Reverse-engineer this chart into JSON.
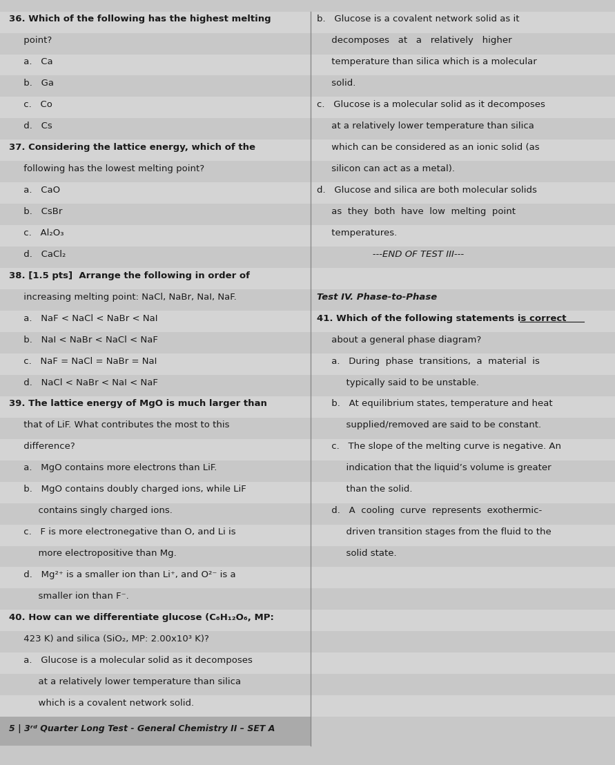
{
  "bg_color": "#c8c8c8",
  "row_color_a": "#c8c8c8",
  "row_color_b": "#d4d4d4",
  "text_color": "#1a1a1a",
  "divider_color": "#888888",
  "font_size": 9.5,
  "page_width": 8.91,
  "page_height": 11.08,
  "rows": [
    {
      "left": "36. Which of the following has the highest melting",
      "right": "b.   Glucose is a covalent network solid as it",
      "left_bold": true,
      "right_bold": false
    },
    {
      "left": "     point?",
      "right": "     decomposes   at   a   relatively   higher",
      "left_bold": false,
      "right_bold": false
    },
    {
      "left": "     a.   Ca",
      "right": "     temperature than silica which is a molecular",
      "left_bold": false,
      "right_bold": false
    },
    {
      "left": "     b.   Ga",
      "right": "     solid.",
      "left_bold": false,
      "right_bold": false
    },
    {
      "left": "     c.   Co",
      "right": "c.   Glucose is a molecular solid as it decomposes",
      "left_bold": false,
      "right_bold": false
    },
    {
      "left": "     d.   Cs",
      "right": "     at a relatively lower temperature than silica",
      "left_bold": false,
      "right_bold": false
    },
    {
      "left": "37. Considering the lattice energy, which of the",
      "right": "     which can be considered as an ionic solid (as",
      "left_bold": true,
      "right_bold": false
    },
    {
      "left": "     following has the lowest melting point?",
      "right": "     silicon can act as a metal).",
      "left_bold": false,
      "right_bold": false
    },
    {
      "left": "     a.   CaO",
      "right": "d.   Glucose and silica are both molecular solids",
      "left_bold": false,
      "right_bold": false
    },
    {
      "left": "     b.   CsBr",
      "right": "     as  they  both  have  low  melting  point",
      "left_bold": false,
      "right_bold": false
    },
    {
      "left": "     c.   Al₂O₃",
      "right": "     temperatures.",
      "left_bold": false,
      "right_bold": false
    },
    {
      "left": "     d.   CaCl₂",
      "right": "                   ---END OF TEST III---",
      "left_bold": false,
      "right_bold": false,
      "right_italic": true
    },
    {
      "left": "38. [1.5 pts]  Arrange the following in order of",
      "right": "",
      "left_bold": true,
      "right_bold": false
    },
    {
      "left": "     increasing melting point: NaCl, NaBr, NaI, NaF.",
      "right": "Test IV. Phase-to-Phase",
      "left_bold": false,
      "right_bold": true,
      "right_italic": true
    },
    {
      "left": "     a.   NaF < NaCl < NaBr < NaI",
      "right": "41. Which of the following statements is correct",
      "left_bold": false,
      "right_bold": true,
      "right_underline": "correct"
    },
    {
      "left": "     b.   NaI < NaBr < NaCl < NaF",
      "right": "     about a general phase diagram?",
      "left_bold": false,
      "right_bold": false
    },
    {
      "left": "     c.   NaF = NaCl = NaBr = NaI",
      "right": "     a.   During  phase  transitions,  a  material  is",
      "left_bold": false,
      "right_bold": false
    },
    {
      "left": "     d.   NaCl < NaBr < NaI < NaF",
      "right": "          typically said to be unstable.",
      "left_bold": false,
      "right_bold": false
    },
    {
      "left": "39. The lattice energy of MgO is much larger than",
      "right": "     b.   At equilibrium states, temperature and heat",
      "left_bold": true,
      "right_bold": false
    },
    {
      "left": "     that of LiF. What contributes the most to this",
      "right": "          supplied/removed are said to be constant.",
      "left_bold": false,
      "right_bold": false
    },
    {
      "left": "     difference?",
      "right": "     c.   The slope of the melting curve is negative. An",
      "left_bold": false,
      "right_bold": false
    },
    {
      "left": "     a.   MgO contains more electrons than LiF.",
      "right": "          indication that the liquid’s volume is greater",
      "left_bold": false,
      "right_bold": false
    },
    {
      "left": "     b.   MgO contains doubly charged ions, while LiF",
      "right": "          than the solid.",
      "left_bold": false,
      "right_bold": false
    },
    {
      "left": "          contains singly charged ions.",
      "right": "     d.   A  cooling  curve  represents  exothermic-",
      "left_bold": false,
      "right_bold": false
    },
    {
      "left": "     c.   F is more electronegative than O, and Li is",
      "right": "          driven transition stages from the fluid to the",
      "left_bold": false,
      "right_bold": false
    },
    {
      "left": "          more electropositive than Mg.",
      "right": "          solid state.",
      "left_bold": false,
      "right_bold": false
    },
    {
      "left": "     d.   Mg²⁺ is a smaller ion than Li⁺, and O²⁻ is a",
      "right": "",
      "left_bold": false,
      "right_bold": false
    },
    {
      "left": "          smaller ion than F⁻.",
      "right": "",
      "left_bold": false,
      "right_bold": false
    },
    {
      "left": "40. How can we differentiate glucose (C₆H₁₂O₆, MP:",
      "right": "",
      "left_bold": true,
      "right_bold": false
    },
    {
      "left": "     423 K) and silica (SiO₂, MP: 2.00x10³ K)?",
      "right": "",
      "left_bold": false,
      "right_bold": false
    },
    {
      "left": "     a.   Glucose is a molecular solid as it decomposes",
      "right": "",
      "left_bold": false,
      "right_bold": false
    },
    {
      "left": "          at a relatively lower temperature than silica",
      "right": "",
      "left_bold": false,
      "right_bold": false
    },
    {
      "left": "          which is a covalent network solid.",
      "right": "",
      "left_bold": false,
      "right_bold": false
    }
  ],
  "footer_text": "5 | 3ʳᵈ Quarter Long Test - General Chemistry II – SET A"
}
